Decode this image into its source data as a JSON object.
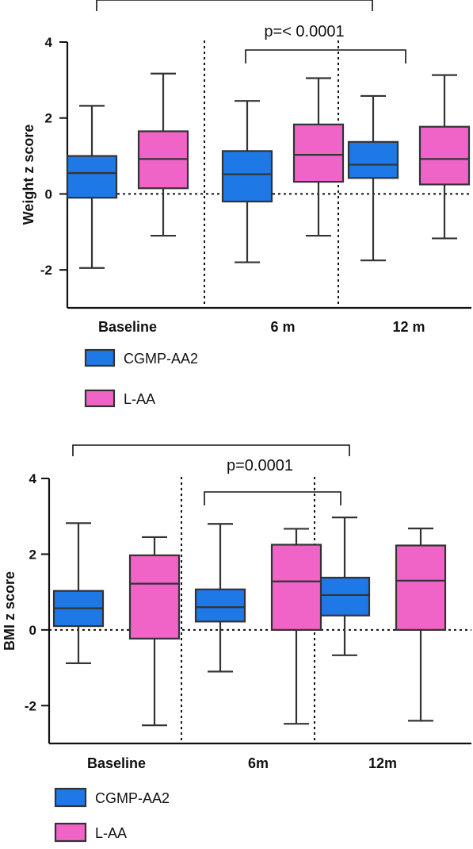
{
  "chart_data": [
    {
      "type": "boxplot",
      "ylabel": "Weight z score",
      "ylim": [
        -3,
        4
      ],
      "yticks": [
        -2,
        0,
        2,
        4
      ],
      "categories": [
        "Baseline",
        "6 m",
        "12 m"
      ],
      "series": [
        {
          "name": "CGMP-AA2",
          "color": "#1e78e6",
          "boxes": [
            {
              "min": -1.95,
              "q1": -0.1,
              "median": 0.55,
              "q3": 1.0,
              "max": 2.32
            },
            {
              "min": -1.8,
              "q1": -0.2,
              "median": 0.52,
              "q3": 1.13,
              "max": 2.45
            },
            {
              "min": -1.75,
              "q1": 0.42,
              "median": 0.77,
              "q3": 1.37,
              "max": 2.58
            }
          ]
        },
        {
          "name": "L-AA",
          "color": "#f064c8",
          "boxes": [
            {
              "min": -1.1,
              "q1": 0.15,
              "median": 0.92,
              "q3": 1.65,
              "max": 3.17
            },
            {
              "min": -1.1,
              "q1": 0.32,
              "median": 1.03,
              "q3": 1.83,
              "max": 3.05
            },
            {
              "min": -1.17,
              "q1": 0.25,
              "median": 0.92,
              "q3": 1.77,
              "max": 3.13
            }
          ]
        }
      ],
      "annotations": [
        {
          "text": "",
          "from": 0,
          "to": 2
        },
        {
          "text": "p=< 0.0001",
          "from": 1,
          "to": 2
        }
      ],
      "reference_line": 0,
      "category_separators": true,
      "legend": [
        {
          "label": "CGMP-AA2",
          "color": "#1e78e6"
        },
        {
          "label": "L-AA",
          "color": "#f064c8"
        }
      ]
    },
    {
      "type": "boxplot",
      "ylabel": "BMI z score",
      "ylim": [
        -3,
        4
      ],
      "yticks": [
        -2,
        0,
        2,
        4
      ],
      "categories": [
        "Baseline",
        "6m",
        "12m"
      ],
      "series": [
        {
          "name": "CGMP-AA2",
          "color": "#1e78e6",
          "boxes": [
            {
              "min": -0.88,
              "q1": 0.1,
              "median": 0.57,
              "q3": 1.03,
              "max": 2.82
            },
            {
              "min": -1.1,
              "q1": 0.22,
              "median": 0.6,
              "q3": 1.07,
              "max": 2.8
            },
            {
              "min": -0.67,
              "q1": 0.38,
              "median": 0.92,
              "q3": 1.38,
              "max": 2.97
            }
          ]
        },
        {
          "name": "L-AA",
          "color": "#f064c8",
          "boxes": [
            {
              "min": -2.52,
              "q1": -0.23,
              "median": 1.22,
              "q3": 1.97,
              "max": 2.45
            },
            {
              "min": -2.48,
              "q1": 0.0,
              "median": 1.28,
              "q3": 2.25,
              "max": 2.67
            },
            {
              "min": -2.4,
              "q1": 0.0,
              "median": 1.3,
              "q3": 2.23,
              "max": 2.68
            }
          ]
        }
      ],
      "annotations": [
        {
          "text": "",
          "from": 0,
          "to": 2
        },
        {
          "text": "p=0.0001",
          "from": 1,
          "to": 2
        }
      ],
      "reference_line": 0,
      "category_separators": true,
      "legend": [
        {
          "label": "CGMP-AA2",
          "color": "#1e78e6"
        },
        {
          "label": "L-AA",
          "color": "#f064c8"
        }
      ]
    }
  ]
}
